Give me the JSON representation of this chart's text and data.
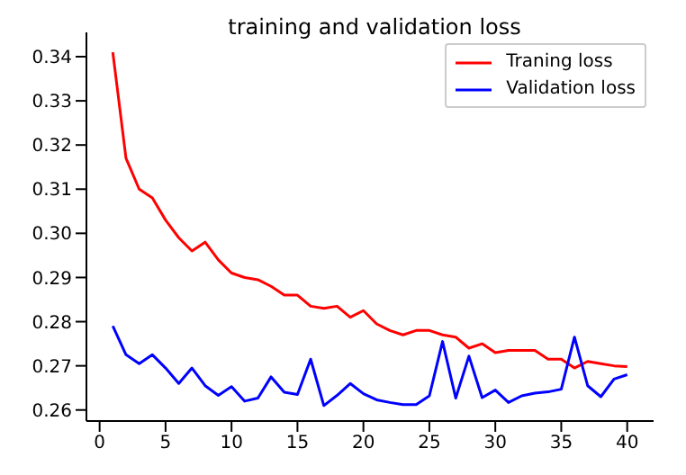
{
  "chart_data": {
    "type": "line",
    "title": "training and validation loss",
    "x": [
      1,
      2,
      3,
      4,
      5,
      6,
      7,
      8,
      9,
      10,
      11,
      12,
      13,
      14,
      15,
      16,
      17,
      18,
      19,
      20,
      21,
      22,
      23,
      24,
      25,
      26,
      27,
      28,
      29,
      30,
      31,
      32,
      33,
      34,
      35,
      36,
      37,
      38,
      39,
      40
    ],
    "series": [
      {
        "name": "Traning loss",
        "color": "#ff0000",
        "values": [
          0.341,
          0.317,
          0.31,
          0.308,
          0.303,
          0.299,
          0.296,
          0.298,
          0.294,
          0.291,
          0.29,
          0.2895,
          0.288,
          0.286,
          0.286,
          0.2835,
          0.283,
          0.2835,
          0.281,
          0.2825,
          0.2795,
          0.278,
          0.277,
          0.278,
          0.278,
          0.277,
          0.2765,
          0.274,
          0.275,
          0.273,
          0.2735,
          0.2735,
          0.2735,
          0.2715,
          0.2715,
          0.2695,
          0.271,
          0.2705,
          0.27,
          0.2698
        ]
      },
      {
        "name": "Validation loss",
        "color": "#0000ff",
        "values": [
          0.279,
          0.2725,
          0.2705,
          0.2725,
          0.2695,
          0.266,
          0.2695,
          0.2655,
          0.2633,
          0.2653,
          0.262,
          0.2627,
          0.2675,
          0.264,
          0.2635,
          0.2715,
          0.261,
          0.2633,
          0.266,
          0.2637,
          0.2623,
          0.2617,
          0.2612,
          0.2612,
          0.2632,
          0.2755,
          0.2627,
          0.2722,
          0.2628,
          0.2645,
          0.2617,
          0.2632,
          0.2638,
          0.2641,
          0.2647,
          0.2765,
          0.2655,
          0.263,
          0.267,
          0.268
        ]
      }
    ],
    "xlim": [
      -1,
      42
    ],
    "xticks": [
      0,
      5,
      10,
      15,
      20,
      25,
      30,
      35,
      40
    ],
    "ylim": [
      0.2575,
      0.3455
    ],
    "yticks": [
      0.26,
      0.27,
      0.28,
      0.29,
      {
        "value": 0.3,
        "label": "0.30"
      },
      0.31,
      0.32,
      0.33,
      0.34
    ],
    "legend": "top right",
    "grid": false,
    "marker": "none",
    "line_style": "solid"
  }
}
